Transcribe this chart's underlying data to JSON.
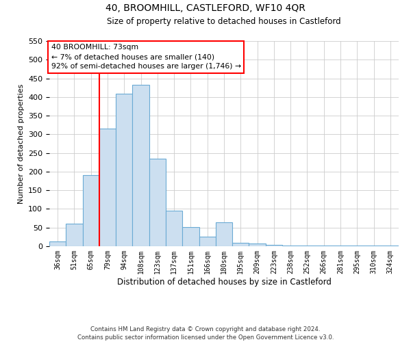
{
  "title": "40, BROOMHILL, CASTLEFORD, WF10 4QR",
  "subtitle": "Size of property relative to detached houses in Castleford",
  "xlabel": "Distribution of detached houses by size in Castleford",
  "ylabel": "Number of detached properties",
  "bar_labels": [
    "36sqm",
    "51sqm",
    "65sqm",
    "79sqm",
    "94sqm",
    "108sqm",
    "123sqm",
    "137sqm",
    "151sqm",
    "166sqm",
    "180sqm",
    "195sqm",
    "209sqm",
    "223sqm",
    "238sqm",
    "252sqm",
    "266sqm",
    "281sqm",
    "295sqm",
    "310sqm",
    "324sqm"
  ],
  "bar_values": [
    13,
    60,
    190,
    315,
    408,
    432,
    235,
    95,
    52,
    25,
    65,
    10,
    8,
    4,
    2,
    1,
    1,
    1,
    1,
    1,
    1
  ],
  "bar_color": "#ccdff0",
  "bar_edge_color": "#6aaad4",
  "ylim": [
    0,
    550
  ],
  "yticks": [
    0,
    50,
    100,
    150,
    200,
    250,
    300,
    350,
    400,
    450,
    500,
    550
  ],
  "red_line_x": 2.5,
  "annotation_title": "40 BROOMHILL: 73sqm",
  "annotation_line1": "← 7% of detached houses are smaller (140)",
  "annotation_line2": "92% of semi-detached houses are larger (1,746) →",
  "footer_line1": "Contains HM Land Registry data © Crown copyright and database right 2024.",
  "footer_line2": "Contains public sector information licensed under the Open Government Licence v3.0.",
  "bg_color": "#ffffff",
  "grid_color": "#cccccc"
}
